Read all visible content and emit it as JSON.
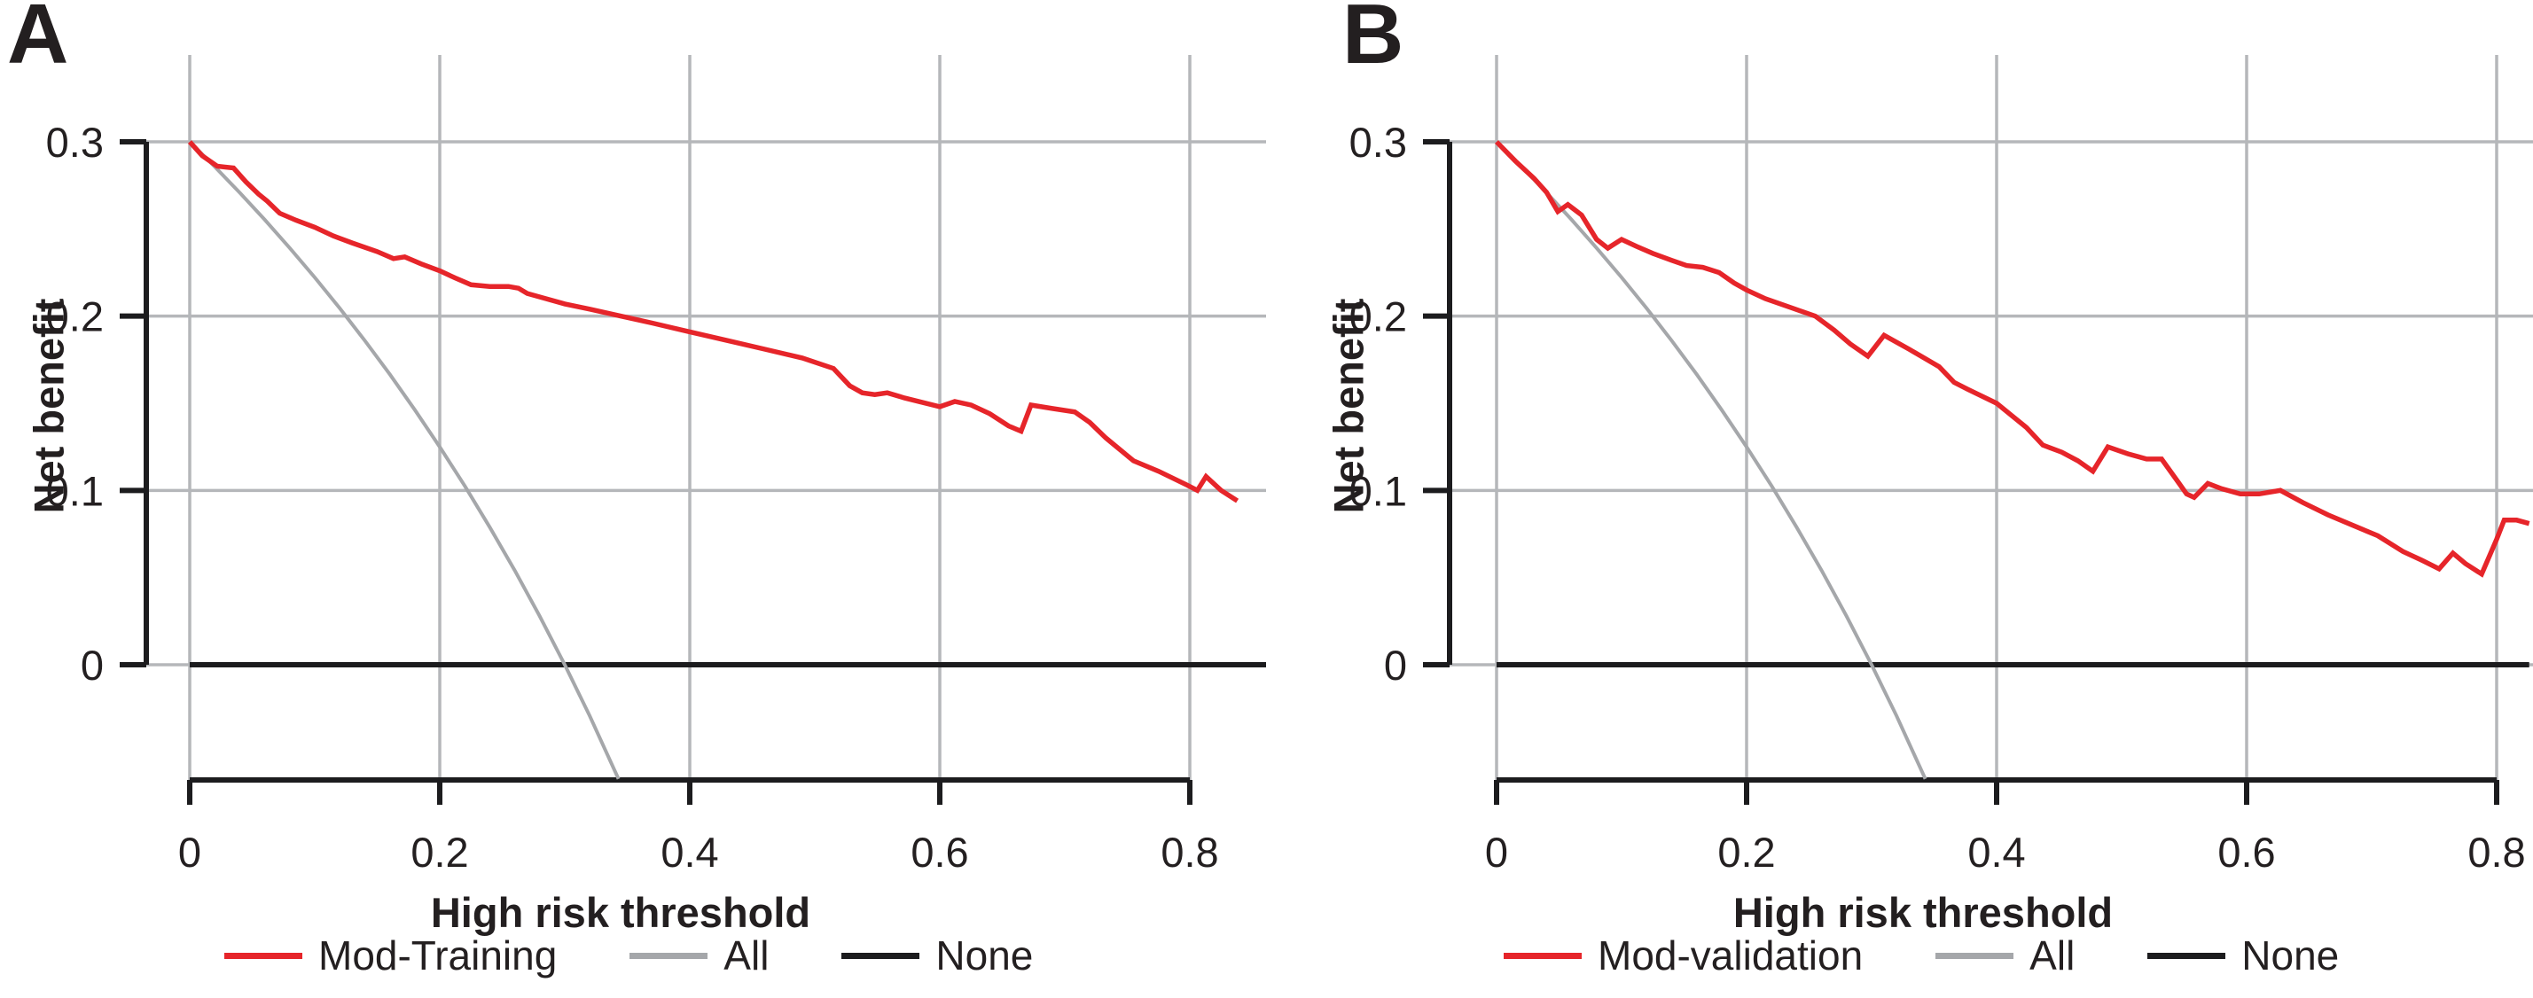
{
  "chart_data": [
    {
      "panel_label": "A",
      "type": "line",
      "title": "",
      "xlabel": "High risk threshold",
      "ylabel": "Net benefit",
      "xlim": [
        0,
        0.861
      ],
      "ylim": [
        -0.066,
        0.353
      ],
      "grid": true,
      "grid_color": "#b5b7ba",
      "axis_color": "#1c1c1e",
      "legend_position": "bottom",
      "x_ticks": [
        0,
        0.2,
        0.4,
        0.6,
        0.8
      ],
      "x_tick_labels": [
        "0",
        "0.2",
        "0.4",
        "0.6",
        "0.8"
      ],
      "y_ticks": [
        0,
        0.1,
        0.2,
        0.3
      ],
      "y_tick_labels": [
        "0",
        "0.1",
        "0.2",
        "0.3"
      ],
      "series": [
        {
          "name": "Mod-Training",
          "color": "#e6252a",
          "width": 5.5,
          "points": [
            [
              0.0,
              0.3
            ],
            [
              0.01,
              0.292
            ],
            [
              0.022,
              0.286
            ],
            [
              0.035,
              0.285
            ],
            [
              0.045,
              0.277
            ],
            [
              0.055,
              0.27
            ],
            [
              0.062,
              0.266
            ],
            [
              0.072,
              0.259
            ],
            [
              0.085,
              0.255
            ],
            [
              0.1,
              0.251
            ],
            [
              0.115,
              0.246
            ],
            [
              0.13,
              0.242
            ],
            [
              0.15,
              0.237
            ],
            [
              0.163,
              0.233
            ],
            [
              0.172,
              0.234
            ],
            [
              0.185,
              0.23
            ],
            [
              0.2,
              0.226
            ],
            [
              0.212,
              0.222
            ],
            [
              0.225,
              0.218
            ],
            [
              0.24,
              0.217
            ],
            [
              0.255,
              0.217
            ],
            [
              0.263,
              0.216
            ],
            [
              0.27,
              0.213
            ],
            [
              0.285,
              0.21
            ],
            [
              0.3,
              0.207
            ],
            [
              0.32,
              0.204
            ],
            [
              0.345,
              0.2
            ],
            [
              0.37,
              0.196
            ],
            [
              0.4,
              0.191
            ],
            [
              0.43,
              0.186
            ],
            [
              0.46,
              0.181
            ],
            [
              0.49,
              0.176
            ],
            [
              0.515,
              0.17
            ],
            [
              0.528,
              0.16
            ],
            [
              0.538,
              0.156
            ],
            [
              0.548,
              0.155
            ],
            [
              0.558,
              0.156
            ],
            [
              0.572,
              0.153
            ],
            [
              0.6,
              0.148
            ],
            [
              0.612,
              0.151
            ],
            [
              0.625,
              0.149
            ],
            [
              0.64,
              0.144
            ],
            [
              0.655,
              0.137
            ],
            [
              0.665,
              0.134
            ],
            [
              0.673,
              0.149
            ],
            [
              0.69,
              0.147
            ],
            [
              0.708,
              0.145
            ],
            [
              0.72,
              0.139
            ],
            [
              0.733,
              0.13
            ],
            [
              0.755,
              0.117
            ],
            [
              0.775,
              0.111
            ],
            [
              0.798,
              0.103
            ],
            [
              0.806,
              0.1
            ],
            [
              0.813,
              0.108
            ],
            [
              0.825,
              0.1
            ],
            [
              0.838,
              0.094
            ]
          ]
        },
        {
          "name": "All",
          "color": "#a5a7aa",
          "width": 4,
          "points": [
            [
              0.0,
              0.3
            ],
            [
              0.02,
              0.2857
            ],
            [
              0.04,
              0.2708
            ],
            [
              0.06,
              0.2553
            ],
            [
              0.08,
              0.2391
            ],
            [
              0.1,
              0.2222
            ],
            [
              0.12,
              0.2045
            ],
            [
              0.14,
              0.186
            ],
            [
              0.16,
              0.1667
            ],
            [
              0.18,
              0.1463
            ],
            [
              0.2,
              0.125
            ],
            [
              0.22,
              0.1026
            ],
            [
              0.24,
              0.0789
            ],
            [
              0.26,
              0.0541
            ],
            [
              0.28,
              0.0278
            ],
            [
              0.3,
              0.0
            ],
            [
              0.32,
              -0.0294
            ],
            [
              0.343,
              -0.0655
            ]
          ]
        },
        {
          "name": "None",
          "color": "#1c1c1e",
          "width": 6,
          "points": [
            [
              0.0,
              0.0
            ],
            [
              0.861,
              0.0
            ]
          ]
        }
      ]
    },
    {
      "panel_label": "B",
      "type": "line",
      "title": "",
      "xlabel": "High risk threshold",
      "ylabel": "Net benefit",
      "xlim": [
        0,
        0.828
      ],
      "ylim": [
        -0.066,
        0.353
      ],
      "grid": true,
      "grid_color": "#b5b7ba",
      "axis_color": "#1c1c1e",
      "legend_position": "bottom",
      "x_ticks": [
        0,
        0.2,
        0.4,
        0.6,
        0.8
      ],
      "x_tick_labels": [
        "0",
        "0.2",
        "0.4",
        "0.6",
        "0.8"
      ],
      "y_ticks": [
        0,
        0.1,
        0.2,
        0.3
      ],
      "y_tick_labels": [
        "0",
        "0.1",
        "0.2",
        "0.3"
      ],
      "series": [
        {
          "name": "Mod-validation",
          "color": "#e6252a",
          "width": 5.5,
          "points": [
            [
              0.0,
              0.3
            ],
            [
              0.015,
              0.289
            ],
            [
              0.03,
              0.279
            ],
            [
              0.04,
              0.271
            ],
            [
              0.049,
              0.26
            ],
            [
              0.057,
              0.264
            ],
            [
              0.068,
              0.258
            ],
            [
              0.08,
              0.244
            ],
            [
              0.089,
              0.239
            ],
            [
              0.1,
              0.244
            ],
            [
              0.112,
              0.24
            ],
            [
              0.125,
              0.236
            ],
            [
              0.14,
              0.232
            ],
            [
              0.152,
              0.229
            ],
            [
              0.165,
              0.228
            ],
            [
              0.178,
              0.225
            ],
            [
              0.19,
              0.219
            ],
            [
              0.2,
              0.215
            ],
            [
              0.215,
              0.21
            ],
            [
              0.235,
              0.205
            ],
            [
              0.255,
              0.2
            ],
            [
              0.27,
              0.192
            ],
            [
              0.283,
              0.184
            ],
            [
              0.297,
              0.177
            ],
            [
              0.31,
              0.189
            ],
            [
              0.33,
              0.181
            ],
            [
              0.354,
              0.171
            ],
            [
              0.366,
              0.162
            ],
            [
              0.377,
              0.158
            ],
            [
              0.4,
              0.15
            ],
            [
              0.412,
              0.143
            ],
            [
              0.424,
              0.136
            ],
            [
              0.437,
              0.126
            ],
            [
              0.452,
              0.122
            ],
            [
              0.465,
              0.117
            ],
            [
              0.477,
              0.111
            ],
            [
              0.489,
              0.125
            ],
            [
              0.505,
              0.121
            ],
            [
              0.52,
              0.118
            ],
            [
              0.532,
              0.118
            ],
            [
              0.545,
              0.105
            ],
            [
              0.552,
              0.098
            ],
            [
              0.558,
              0.096
            ],
            [
              0.569,
              0.104
            ],
            [
              0.58,
              0.101
            ],
            [
              0.595,
              0.098
            ],
            [
              0.61,
              0.098
            ],
            [
              0.627,
              0.1
            ],
            [
              0.645,
              0.093
            ],
            [
              0.665,
              0.086
            ],
            [
              0.685,
              0.08
            ],
            [
              0.705,
              0.074
            ],
            [
              0.725,
              0.065
            ],
            [
              0.74,
              0.06
            ],
            [
              0.754,
              0.055
            ],
            [
              0.765,
              0.064
            ],
            [
              0.775,
              0.058
            ],
            [
              0.788,
              0.052
            ],
            [
              0.8,
              0.072
            ],
            [
              0.806,
              0.083
            ],
            [
              0.816,
              0.083
            ],
            [
              0.826,
              0.081
            ]
          ]
        },
        {
          "name": "All",
          "color": "#a5a7aa",
          "width": 4,
          "points": [
            [
              0.0,
              0.3
            ],
            [
              0.02,
              0.2857
            ],
            [
              0.04,
              0.2708
            ],
            [
              0.06,
              0.2553
            ],
            [
              0.08,
              0.2391
            ],
            [
              0.1,
              0.2222
            ],
            [
              0.12,
              0.2045
            ],
            [
              0.14,
              0.186
            ],
            [
              0.16,
              0.1667
            ],
            [
              0.18,
              0.1463
            ],
            [
              0.2,
              0.125
            ],
            [
              0.22,
              0.1026
            ],
            [
              0.24,
              0.0789
            ],
            [
              0.26,
              0.0541
            ],
            [
              0.28,
              0.0278
            ],
            [
              0.3,
              0.0
            ],
            [
              0.32,
              -0.0294
            ],
            [
              0.343,
              -0.0655
            ]
          ]
        },
        {
          "name": "None",
          "color": "#1c1c1e",
          "width": 6,
          "points": [
            [
              0.0,
              0.0
            ],
            [
              0.826,
              0.0
            ]
          ]
        }
      ]
    }
  ]
}
